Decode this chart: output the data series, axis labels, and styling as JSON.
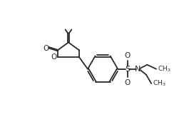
{
  "bg_color": "#ffffff",
  "line_color": "#2a2a2a",
  "line_width": 1.3,
  "font_size": 7.5,
  "fig_width": 2.65,
  "fig_height": 1.78,
  "dpi": 100,
  "xlim": [
    0,
    10
  ],
  "ylim": [
    0,
    6.7
  ]
}
